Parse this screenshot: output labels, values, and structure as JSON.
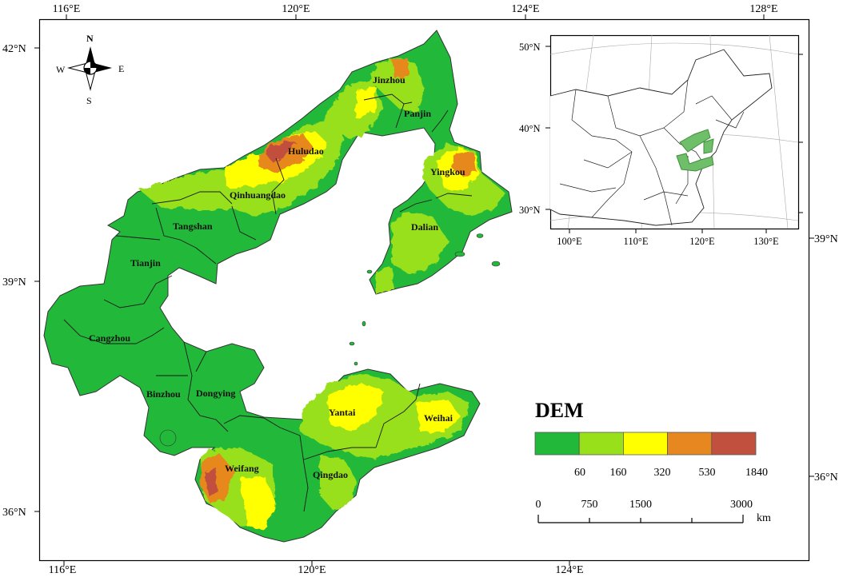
{
  "top_axis": [
    "116°E",
    "120°E",
    "124°E",
    "128°E"
  ],
  "bottom_axis": [
    "116°E",
    "120°E",
    "124°E"
  ],
  "left_axis": [
    "42°N",
    "39°N",
    "36°N"
  ],
  "right_axis": [
    "39°N",
    "36°N"
  ],
  "compass": {
    "n": "N",
    "s": "S",
    "e": "E",
    "w": "W"
  },
  "cities": [
    "Jinzhou",
    "Panjin",
    "Huludao",
    "Yingkou",
    "Qinhuangdao",
    "Tangshan",
    "Dalian",
    "Tianjin",
    "Cangzhou",
    "Binzhou",
    "Dongying",
    "Yantai",
    "Weihai",
    "Weifang",
    "Qingdao"
  ],
  "inset": {
    "lat_labels": [
      "50°N",
      "40°N",
      "30°N"
    ],
    "lon_labels": [
      "100°E",
      "110°E",
      "120°E",
      "130°E"
    ]
  },
  "legend": {
    "title": "DEM",
    "colors": [
      "#22b83a",
      "#98e01a",
      "#ffff00",
      "#e6881f",
      "#c2503e"
    ],
    "breaks": [
      "60",
      "160",
      "320",
      "530",
      "1840"
    ]
  },
  "scalebar": {
    "labels": [
      "0",
      "750",
      "1500",
      "3000"
    ],
    "unit": "km"
  }
}
